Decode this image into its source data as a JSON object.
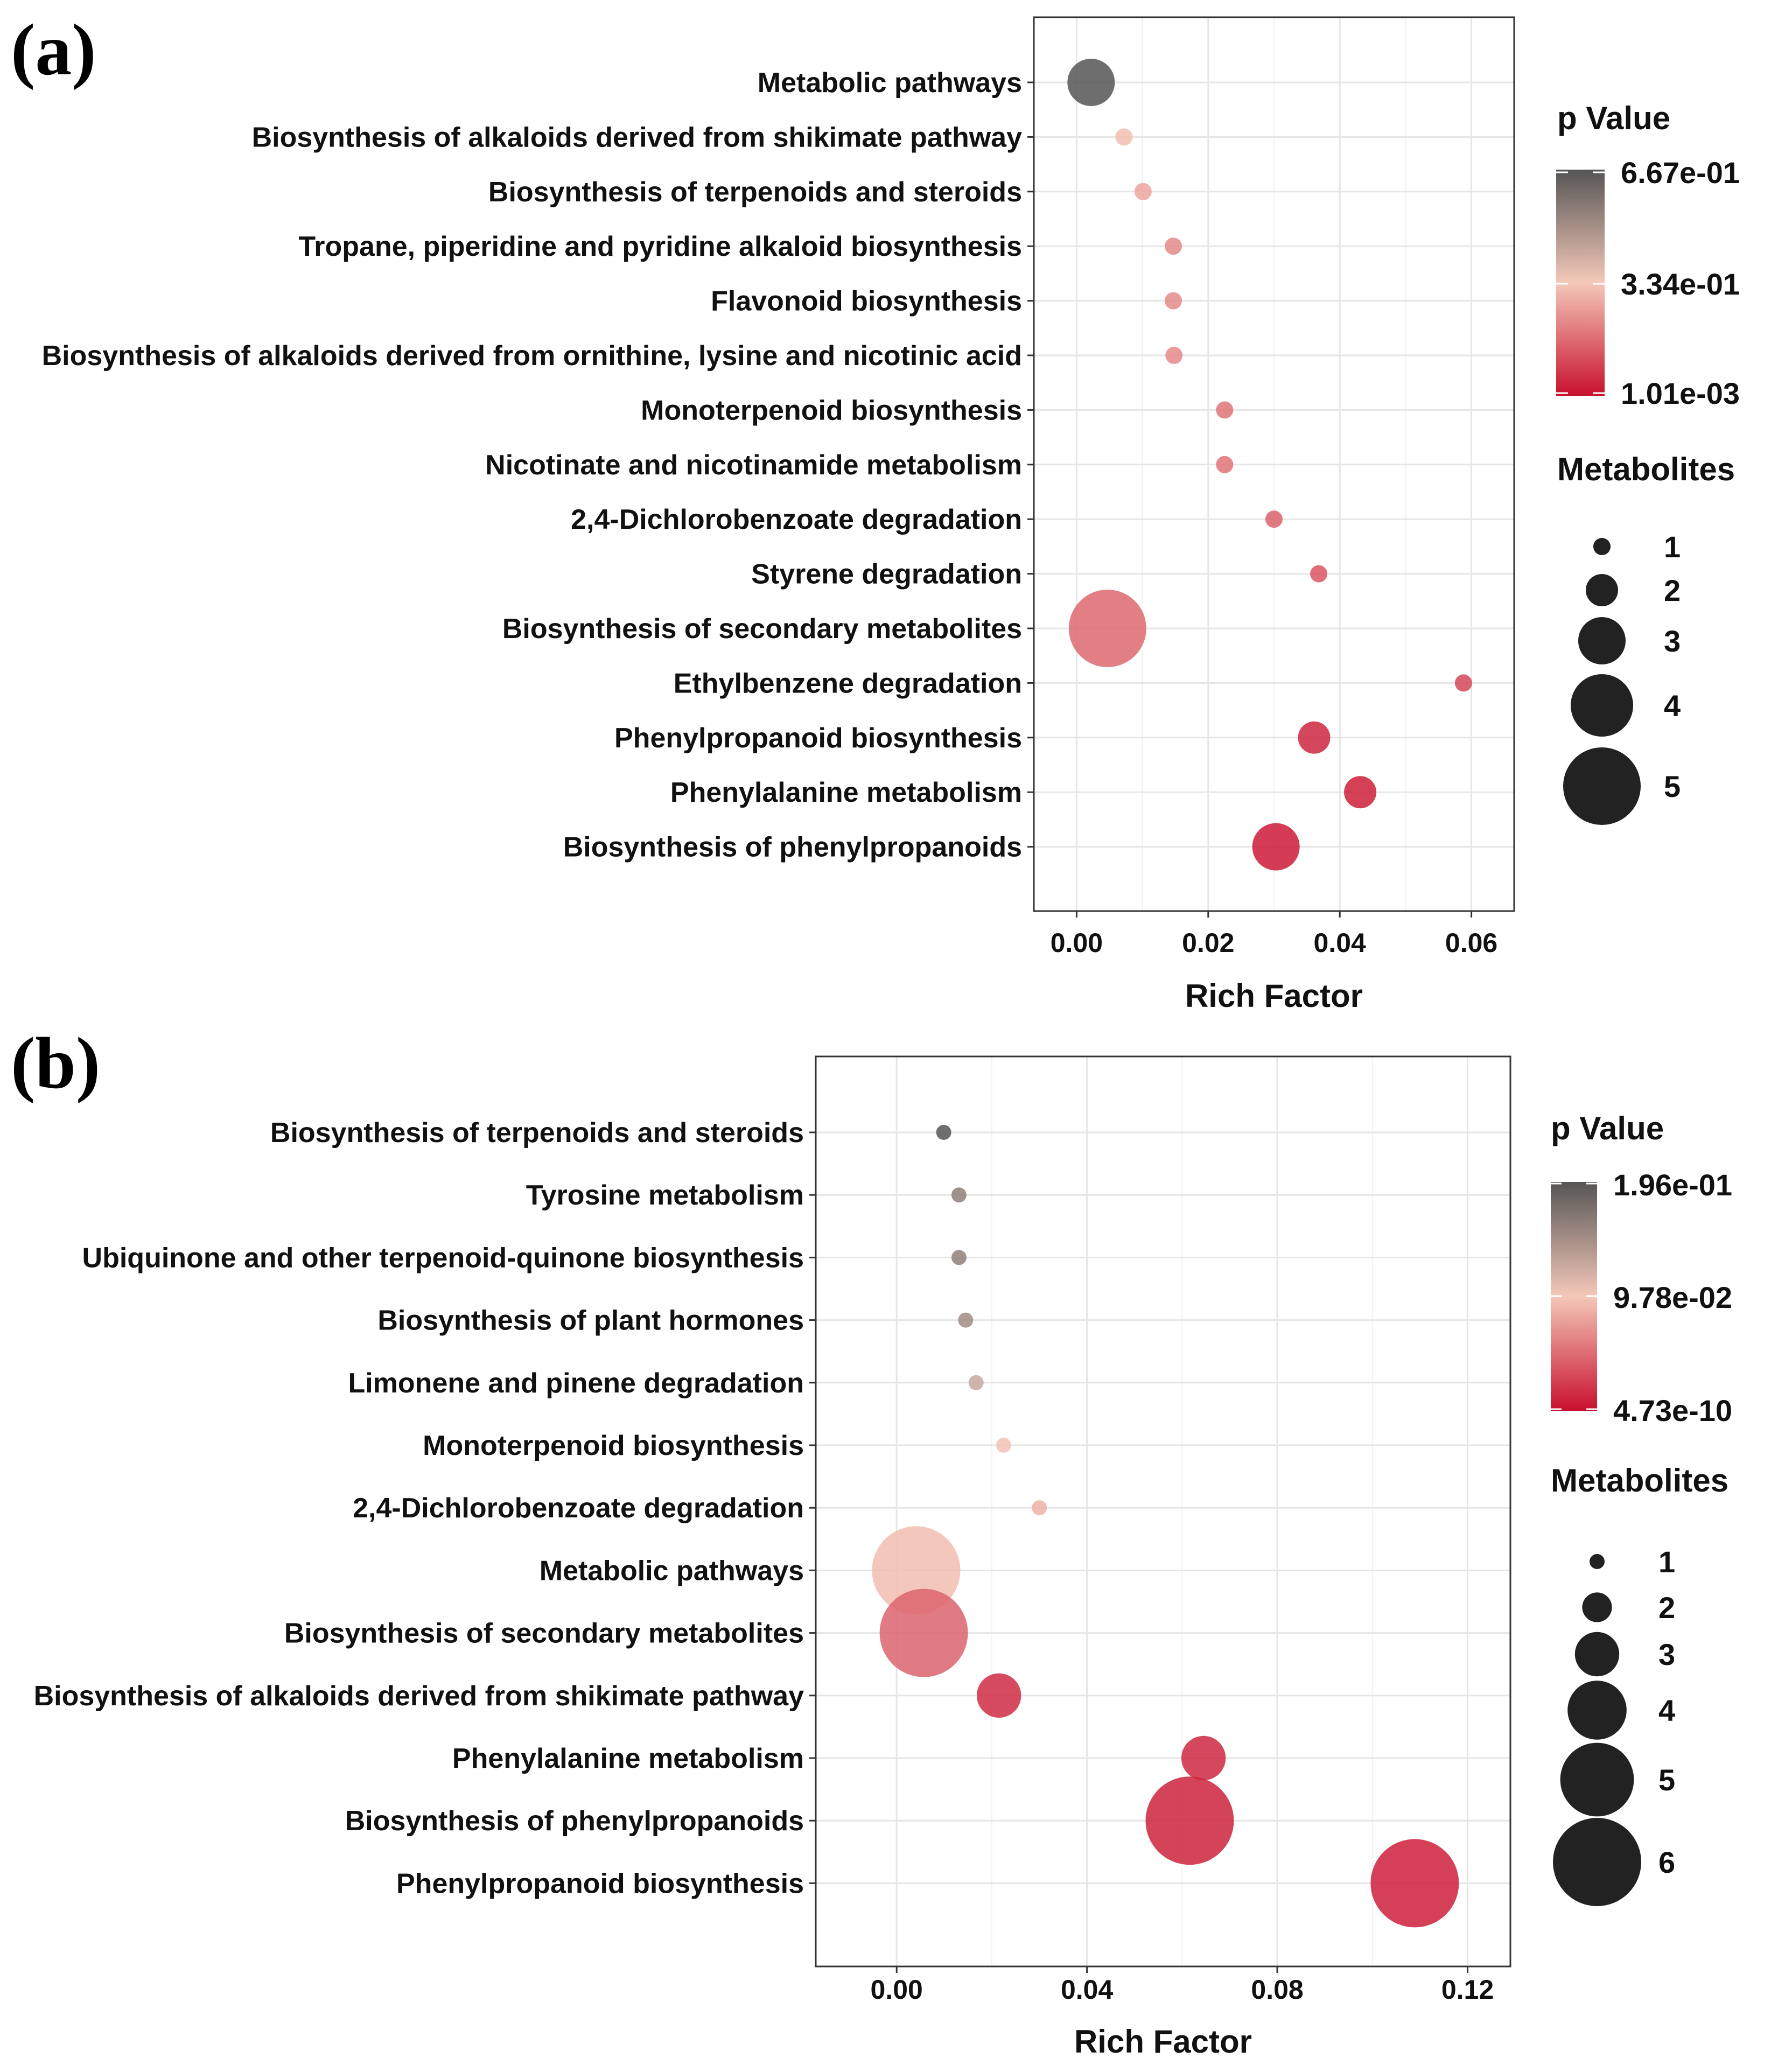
{
  "chart_data": [
    {
      "type": "scatter",
      "panel_label": "(a)",
      "title": "",
      "xlabel": "Rich Factor",
      "ylabel": "",
      "xlim": [
        -0.0065,
        0.0665
      ],
      "x_ticks": [
        0.0,
        0.02,
        0.04,
        0.06
      ],
      "x_tick_labels": [
        "0.00",
        "0.02",
        "0.04",
        "0.06"
      ],
      "grid": true,
      "color_legend": {
        "title": "p Value",
        "max_label": "6.67e-01",
        "mid_label": "3.34e-01",
        "min_label": "1.01e-03",
        "max_value": 0.667,
        "min_value": 0.00101,
        "colors": {
          "high": "#555555",
          "mid": "#f4c8b8",
          "low": "#c8102e"
        }
      },
      "size_legend": {
        "title": "Metabolites",
        "values": [
          1,
          2,
          3,
          4,
          5
        ],
        "labels": [
          "1",
          "2",
          "3",
          "4",
          "5"
        ]
      },
      "points": [
        {
          "pathway": "Metabolic pathways",
          "rich_factor": 0.0022,
          "p_value": 0.667,
          "metabolites": 3
        },
        {
          "pathway": "Biosynthesis of alkaloids derived from shikimate pathway",
          "rich_factor": 0.0072,
          "p_value": 0.32,
          "metabolites": 1
        },
        {
          "pathway": "Biosynthesis of terpenoids and steroids",
          "rich_factor": 0.0101,
          "p_value": 0.27,
          "metabolites": 1
        },
        {
          "pathway": "Tropane, piperidine and pyridine alkaloid biosynthesis",
          "rich_factor": 0.0147,
          "p_value": 0.22,
          "metabolites": 1
        },
        {
          "pathway": "Flavonoid biosynthesis",
          "rich_factor": 0.0147,
          "p_value": 0.22,
          "metabolites": 1
        },
        {
          "pathway": "Biosynthesis of alkaloids derived from ornithine, lysine and nicotinic acid",
          "rich_factor": 0.0148,
          "p_value": 0.22,
          "metabolites": 1
        },
        {
          "pathway": "Monoterpenoid biosynthesis",
          "rich_factor": 0.0225,
          "p_value": 0.18,
          "metabolites": 1
        },
        {
          "pathway": "Nicotinate and nicotinamide metabolism",
          "rich_factor": 0.0225,
          "p_value": 0.18,
          "metabolites": 1
        },
        {
          "pathway": "2,4-Dichlorobenzoate degradation",
          "rich_factor": 0.03,
          "p_value": 0.15,
          "metabolites": 1
        },
        {
          "pathway": "Styrene degradation",
          "rich_factor": 0.0368,
          "p_value": 0.13,
          "metabolites": 1
        },
        {
          "pathway": "Biosynthesis of secondary metabolites",
          "rich_factor": 0.0047,
          "p_value": 0.16,
          "metabolites": 5
        },
        {
          "pathway": "Ethylbenzene degradation",
          "rich_factor": 0.0588,
          "p_value": 0.1,
          "metabolites": 1
        },
        {
          "pathway": "Phenylpropanoid biosynthesis",
          "rich_factor": 0.0361,
          "p_value": 0.04,
          "metabolites": 2
        },
        {
          "pathway": "Phenylalanine metabolism",
          "rich_factor": 0.0431,
          "p_value": 0.03,
          "metabolites": 2
        },
        {
          "pathway": "Biosynthesis of phenylpropanoids",
          "rich_factor": 0.0303,
          "p_value": 0.02,
          "metabolites": 3
        }
      ]
    },
    {
      "type": "scatter",
      "panel_label": "(b)",
      "title": "",
      "xlabel": "Rich Factor",
      "ylabel": "",
      "xlim": [
        -0.017,
        0.129
      ],
      "x_ticks": [
        0.0,
        0.04,
        0.08,
        0.12
      ],
      "x_tick_labels": [
        "0.00",
        "0.04",
        "0.08",
        "0.12"
      ],
      "grid": true,
      "color_legend": {
        "title": "p Value",
        "max_label": "1.96e-01",
        "mid_label": "9.78e-02",
        "min_label": "4.73e-10",
        "max_value": 0.196,
        "min_value": 4.73e-10,
        "colors": {
          "high": "#555555",
          "mid": "#f4c8b8",
          "low": "#c8102e"
        }
      },
      "size_legend": {
        "title": "Metabolites",
        "values": [
          1,
          2,
          3,
          4,
          5,
          6
        ],
        "labels": [
          "1",
          "2",
          "3",
          "4",
          "5",
          "6"
        ]
      },
      "points": [
        {
          "pathway": "Biosynthesis of terpenoids and steroids",
          "rich_factor": 0.0099,
          "p_value": 0.196,
          "metabolites": 1
        },
        {
          "pathway": "Tyrosine metabolism",
          "rich_factor": 0.0131,
          "p_value": 0.16,
          "metabolites": 1
        },
        {
          "pathway": "Ubiquinone and other terpenoid-quinone biosynthesis",
          "rich_factor": 0.0131,
          "p_value": 0.16,
          "metabolites": 1
        },
        {
          "pathway": "Biosynthesis of plant hormones",
          "rich_factor": 0.0145,
          "p_value": 0.15,
          "metabolites": 1
        },
        {
          "pathway": "Limonene and pinene degradation",
          "rich_factor": 0.0167,
          "p_value": 0.125,
          "metabolites": 1
        },
        {
          "pathway": "Monoterpenoid biosynthesis",
          "rich_factor": 0.0225,
          "p_value": 0.095,
          "metabolites": 1
        },
        {
          "pathway": "2,4-Dichlorobenzoate degradation",
          "rich_factor": 0.03,
          "p_value": 0.085,
          "metabolites": 1
        },
        {
          "pathway": "Metabolic pathways",
          "rich_factor": 0.0041,
          "p_value": 0.092,
          "metabolites": 6
        },
        {
          "pathway": "Biosynthesis of secondary metabolites",
          "rich_factor": 0.0057,
          "p_value": 0.045,
          "metabolites": 6
        },
        {
          "pathway": "Biosynthesis of alkaloids derived from shikimate pathway",
          "rich_factor": 0.0215,
          "p_value": 0.015,
          "metabolites": 3
        },
        {
          "pathway": "Phenylalanine metabolism",
          "rich_factor": 0.0645,
          "p_value": 0.012,
          "metabolites": 3
        },
        {
          "pathway": "Biosynthesis of phenylpropanoids",
          "rich_factor": 0.0616,
          "p_value": 0.01,
          "metabolites": 6
        },
        {
          "pathway": "Phenylpropanoid biosynthesis",
          "rich_factor": 0.1089,
          "p_value": 0.008,
          "metabolites": 6
        }
      ]
    }
  ]
}
